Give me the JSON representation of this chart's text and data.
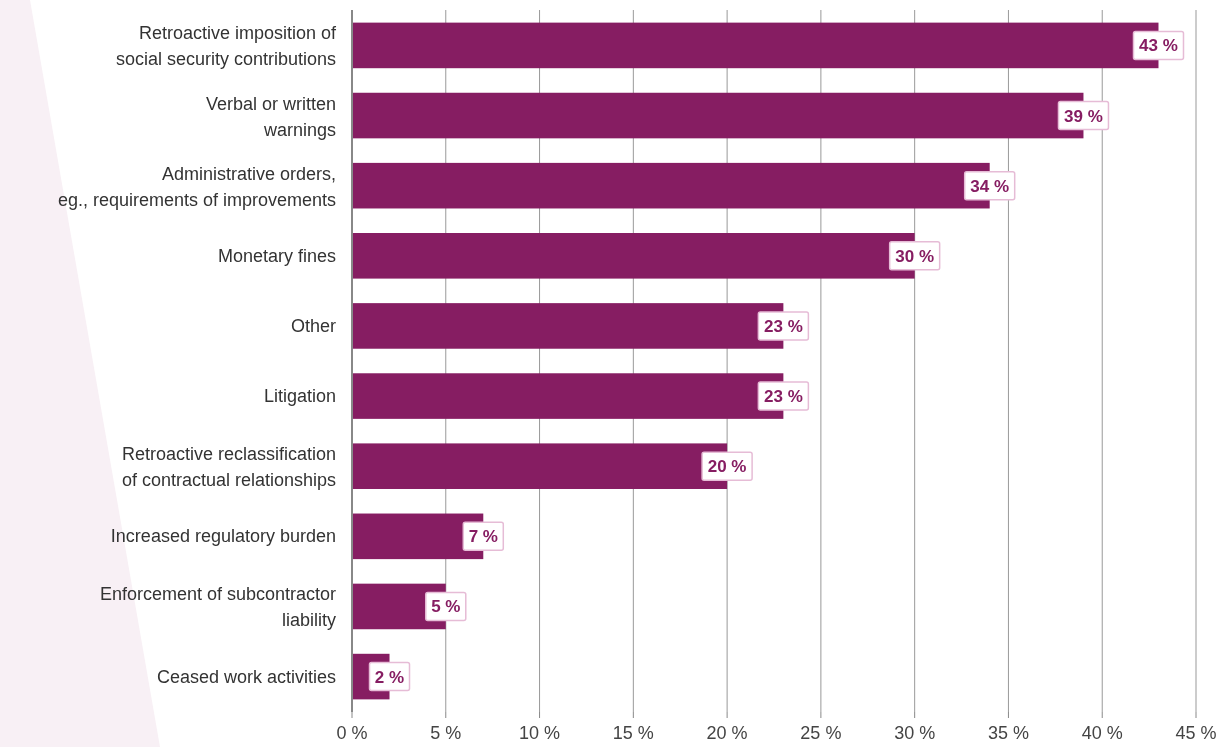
{
  "chart_data": {
    "type": "bar",
    "orientation": "horizontal",
    "categories": [
      "Retroactive imposition of\nsocial security contributions",
      "Verbal or written\nwarnings",
      "Administrative orders,\neg., requirements of improvements",
      "Monetary fines",
      "Other",
      "Litigation",
      "Retroactive reclassification\nof contractual relationships",
      "Increased regulatory burden",
      "Enforcement of subcontractor\nliability",
      "Ceased work activities"
    ],
    "values": [
      43,
      39,
      34,
      30,
      23,
      23,
      20,
      7,
      5,
      2
    ],
    "color": "#861d62",
    "value_labels": [
      "43 %",
      "39 %",
      "34 %",
      "30 %",
      "23 %",
      "23 %",
      "20 %",
      "7 %",
      "5 %",
      "2 %"
    ],
    "xlim": [
      0,
      45
    ],
    "xticks": [
      {
        "value": 0,
        "label": "0 %"
      },
      {
        "value": 5,
        "label": "5 %"
      },
      {
        "value": 10,
        "label": "10 %"
      },
      {
        "value": 15,
        "label": "15 %"
      },
      {
        "value": 20,
        "label": "20 %"
      },
      {
        "value": 25,
        "label": "25 %"
      },
      {
        "value": 30,
        "label": "30 %"
      },
      {
        "value": 35,
        "label": "35 %"
      },
      {
        "value": 40,
        "label": "40 %"
      },
      {
        "value": 45,
        "label": "45 %"
      }
    ],
    "grid": "x"
  }
}
